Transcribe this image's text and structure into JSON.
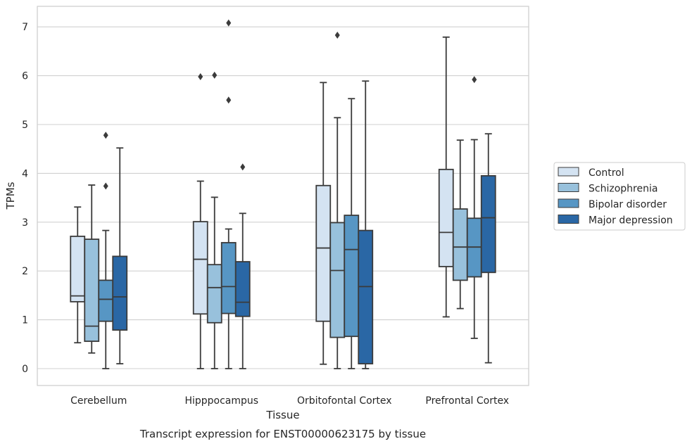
{
  "chart_data": {
    "type": "boxplot",
    "xlabel": "Tissue",
    "ylabel": "TPMs",
    "caption": "Transcript expression for ENST00000623175 by tissue",
    "categories": [
      "Cerebellum",
      "Hipppocampus",
      "Orbitofontal Cortex",
      "Prefrontal Cortex"
    ],
    "ylim": [
      -0.35,
      7.45
    ],
    "yticks": [
      0,
      1,
      2,
      3,
      4,
      5,
      6,
      7
    ],
    "grid": "horizontal",
    "legend_position": "right",
    "series": [
      {
        "name": "Control",
        "color": "#d4e3f2",
        "boxes": [
          {
            "whislo": 0.53,
            "q1": 1.37,
            "med": 1.49,
            "q3": 2.71,
            "whishi": 3.31,
            "fliers": []
          },
          {
            "whislo": 0.0,
            "q1": 1.12,
            "med": 2.24,
            "q3": 3.01,
            "whishi": 3.84,
            "fliers": [
              5.98
            ]
          },
          {
            "whislo": 0.09,
            "q1": 0.97,
            "med": 2.47,
            "q3": 3.75,
            "whishi": 5.86,
            "fliers": []
          },
          {
            "whislo": 1.06,
            "q1": 2.09,
            "med": 2.79,
            "q3": 4.08,
            "whishi": 6.79,
            "fliers": []
          }
        ]
      },
      {
        "name": "Schizophrenia",
        "color": "#98c1dc",
        "boxes": [
          {
            "whislo": 0.32,
            "q1": 0.56,
            "med": 0.87,
            "q3": 2.65,
            "whishi": 3.76,
            "fliers": []
          },
          {
            "whislo": 0.0,
            "q1": 0.94,
            "med": 1.66,
            "q3": 2.13,
            "whishi": 3.51,
            "fliers": [
              6.01
            ]
          },
          {
            "whislo": 0.0,
            "q1": 0.64,
            "med": 2.01,
            "q3": 2.99,
            "whishi": 5.14,
            "fliers": [
              6.83
            ]
          },
          {
            "whislo": 1.23,
            "q1": 1.81,
            "med": 2.49,
            "q3": 3.27,
            "whishi": 4.68,
            "fliers": []
          }
        ]
      },
      {
        "name": "Bipolar disorder",
        "color": "#5796c4",
        "boxes": [
          {
            "whislo": 0.0,
            "q1": 0.97,
            "med": 1.42,
            "q3": 1.81,
            "whishi": 2.83,
            "fliers": [
              3.74,
              4.78
            ]
          },
          {
            "whislo": 0.0,
            "q1": 1.13,
            "med": 1.68,
            "q3": 2.58,
            "whishi": 2.86,
            "fliers": [
              5.5,
              7.08
            ]
          },
          {
            "whislo": 0.0,
            "q1": 0.66,
            "med": 2.44,
            "q3": 3.14,
            "whishi": 5.53,
            "fliers": []
          },
          {
            "whislo": 0.62,
            "q1": 1.88,
            "med": 2.49,
            "q3": 3.08,
            "whishi": 4.69,
            "fliers": [
              5.92
            ]
          }
        ]
      },
      {
        "name": "Major depression",
        "color": "#2a67a5",
        "boxes": [
          {
            "whislo": 0.1,
            "q1": 0.79,
            "med": 1.47,
            "q3": 2.3,
            "whishi": 4.52,
            "fliers": []
          },
          {
            "whislo": 0.0,
            "q1": 1.07,
            "med": 1.36,
            "q3": 2.19,
            "whishi": 3.18,
            "fliers": [
              4.13
            ]
          },
          {
            "whislo": 0.0,
            "q1": 0.1,
            "med": 1.68,
            "q3": 2.83,
            "whishi": 5.89,
            "fliers": []
          },
          {
            "whislo": 0.12,
            "q1": 1.97,
            "med": 3.09,
            "q3": 3.95,
            "whishi": 4.81,
            "fliers": []
          }
        ]
      }
    ]
  }
}
